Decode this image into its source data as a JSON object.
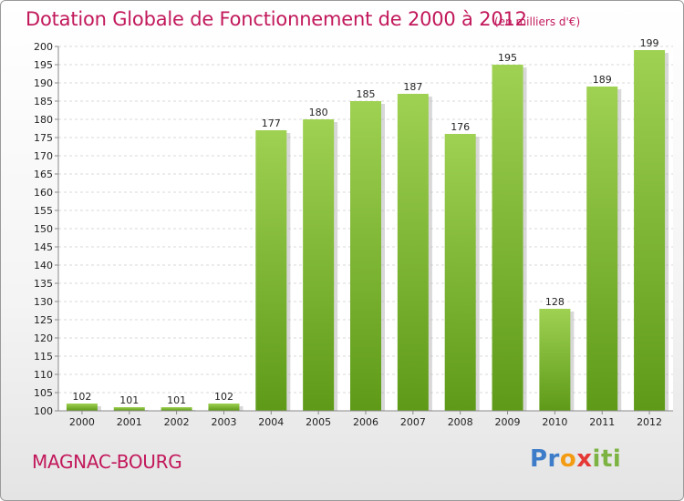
{
  "title": "Dotation Globale de Fonctionnement de 2000 à 2012",
  "unit_note": "(en milliers d'€)",
  "commune": "MAGNAC-BOURG",
  "logo": {
    "parts": [
      "Pr",
      "o",
      "x",
      "iti"
    ],
    "colors": [
      "#3d7cc9",
      "#f39c12",
      "#e53935",
      "#7cb342"
    ]
  },
  "colors": {
    "bar_top": "#9fd152",
    "bar_bottom": "#5e9a18",
    "shadow": "#b8b8b8",
    "title": "#c2185b"
  },
  "chart_data": {
    "type": "bar",
    "title": "Dotation Globale de Fonctionnement de 2000 à 2012",
    "categories": [
      "2000",
      "2001",
      "2002",
      "2003",
      "2004",
      "2005",
      "2006",
      "2007",
      "2008",
      "2009",
      "2010",
      "2011",
      "2012"
    ],
    "values": [
      102,
      101,
      101,
      102,
      177,
      180,
      185,
      187,
      176,
      195,
      128,
      189,
      199
    ],
    "ylim": [
      100,
      200
    ],
    "yticks": [
      100,
      105,
      110,
      115,
      120,
      125,
      130,
      135,
      140,
      145,
      150,
      155,
      160,
      165,
      170,
      175,
      180,
      185,
      190,
      195,
      200
    ],
    "grid": true,
    "data_labels": true
  }
}
